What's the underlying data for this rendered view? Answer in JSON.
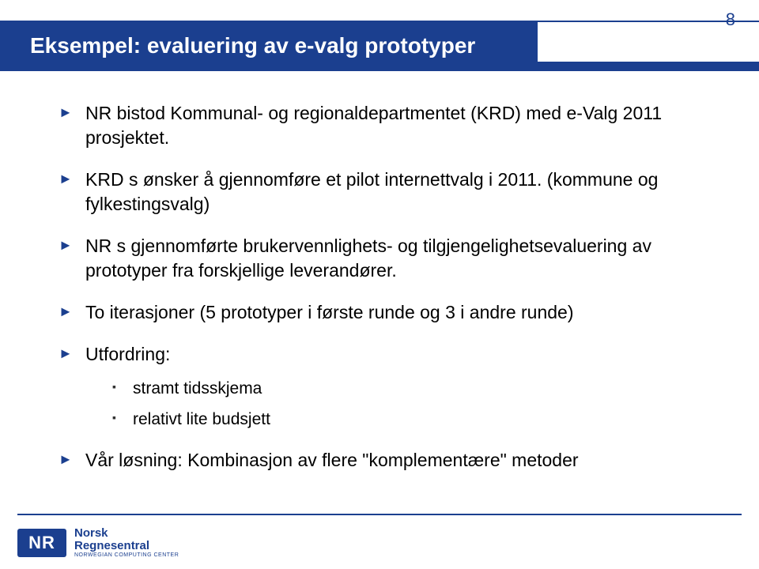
{
  "colors": {
    "title_bar_bg": "#1b3f8f",
    "title_text": "#ffffff",
    "page_number": "#1b3f8f",
    "bullet_marker": "#1b3f8f",
    "sub_marker": "#333333",
    "body_text": "#000000",
    "footer_line": "#1b3f8f",
    "logo_bg": "#1b3f8f",
    "logo_fg": "#ffffff",
    "logo_text": "#1b3f8f",
    "underlay_blue_width": 680
  },
  "typography": {
    "title_size": 28,
    "title_weight": "bold",
    "page_number_size": 22,
    "body_size": 23,
    "body_line_height": 1.35,
    "sub_size": 21,
    "logo_nr_size": 22,
    "logo_nr_weight": "bold",
    "logo_name_size": 15,
    "logo_name_weight": "bold",
    "logo_sub_size": 7
  },
  "page_number": "8",
  "title": "Eksempel: evaluering av e-valg prototyper",
  "bullets": [
    {
      "text": "NR bistod Kommunal- og regionaldepartmentet (KRD) med e-Valg 2011 prosjektet."
    },
    {
      "text": "KRD s ønsker å gjennomføre et pilot internettvalg i 2011. (kommune og fylkestingsvalg)"
    },
    {
      "text": "NR s gjennomførte brukervennlighets- og tilgjengelighetsevaluering av prototyper fra forskjellige leverandører."
    },
    {
      "text": "To iterasjoner (5 prototyper i første runde og 3 i andre runde)"
    },
    {
      "text": "Utfordring:",
      "sub": [
        {
          "text": "stramt tidsskjema"
        },
        {
          "text": "relativt lite budsjett"
        }
      ]
    },
    {
      "text": "Vår løsning: Kombinasjon av flere \"komplementære\" metoder"
    }
  ],
  "logo": {
    "abbrev": "NR",
    "name": "Norsk\nRegnesentral",
    "subtitle": "NORWEGIAN COMPUTING CENTER"
  }
}
